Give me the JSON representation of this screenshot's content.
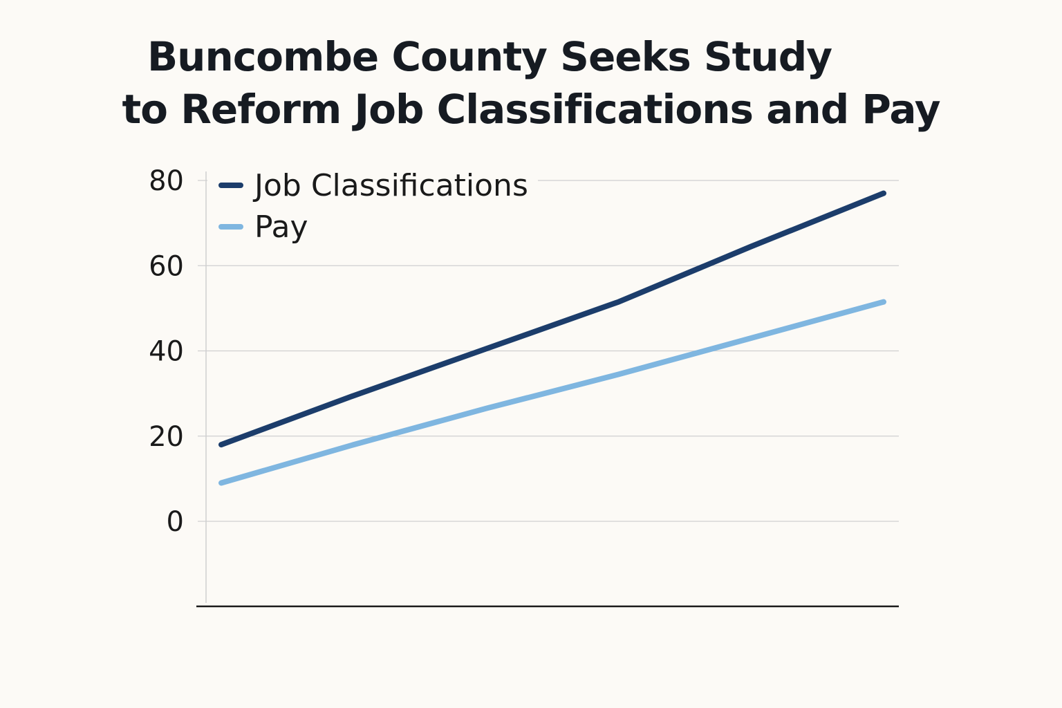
{
  "title_line1": "Buncombe County Seeks Study",
  "title_line2": "to Reform Job Classifications and Pay",
  "chart_data": {
    "type": "line",
    "title": "Buncombe County Seeks Study to Reform Job Classifications and Pay",
    "xlabel": "",
    "ylabel": "",
    "x": [
      0,
      1,
      2,
      3,
      4,
      5
    ],
    "ylim": [
      -20,
      80
    ],
    "yticks": [
      0,
      20,
      40,
      60,
      80
    ],
    "grid": true,
    "legend": "top-left",
    "series": [
      {
        "name": "Job Classifications",
        "color": "#1c3d6b",
        "values": [
          18,
          29.5,
          40.5,
          51.5,
          64.5,
          77
        ]
      },
      {
        "name": "Pay",
        "color": "#7fb6e0",
        "values": [
          9,
          18,
          26.5,
          34.5,
          43,
          51.5
        ]
      }
    ]
  }
}
